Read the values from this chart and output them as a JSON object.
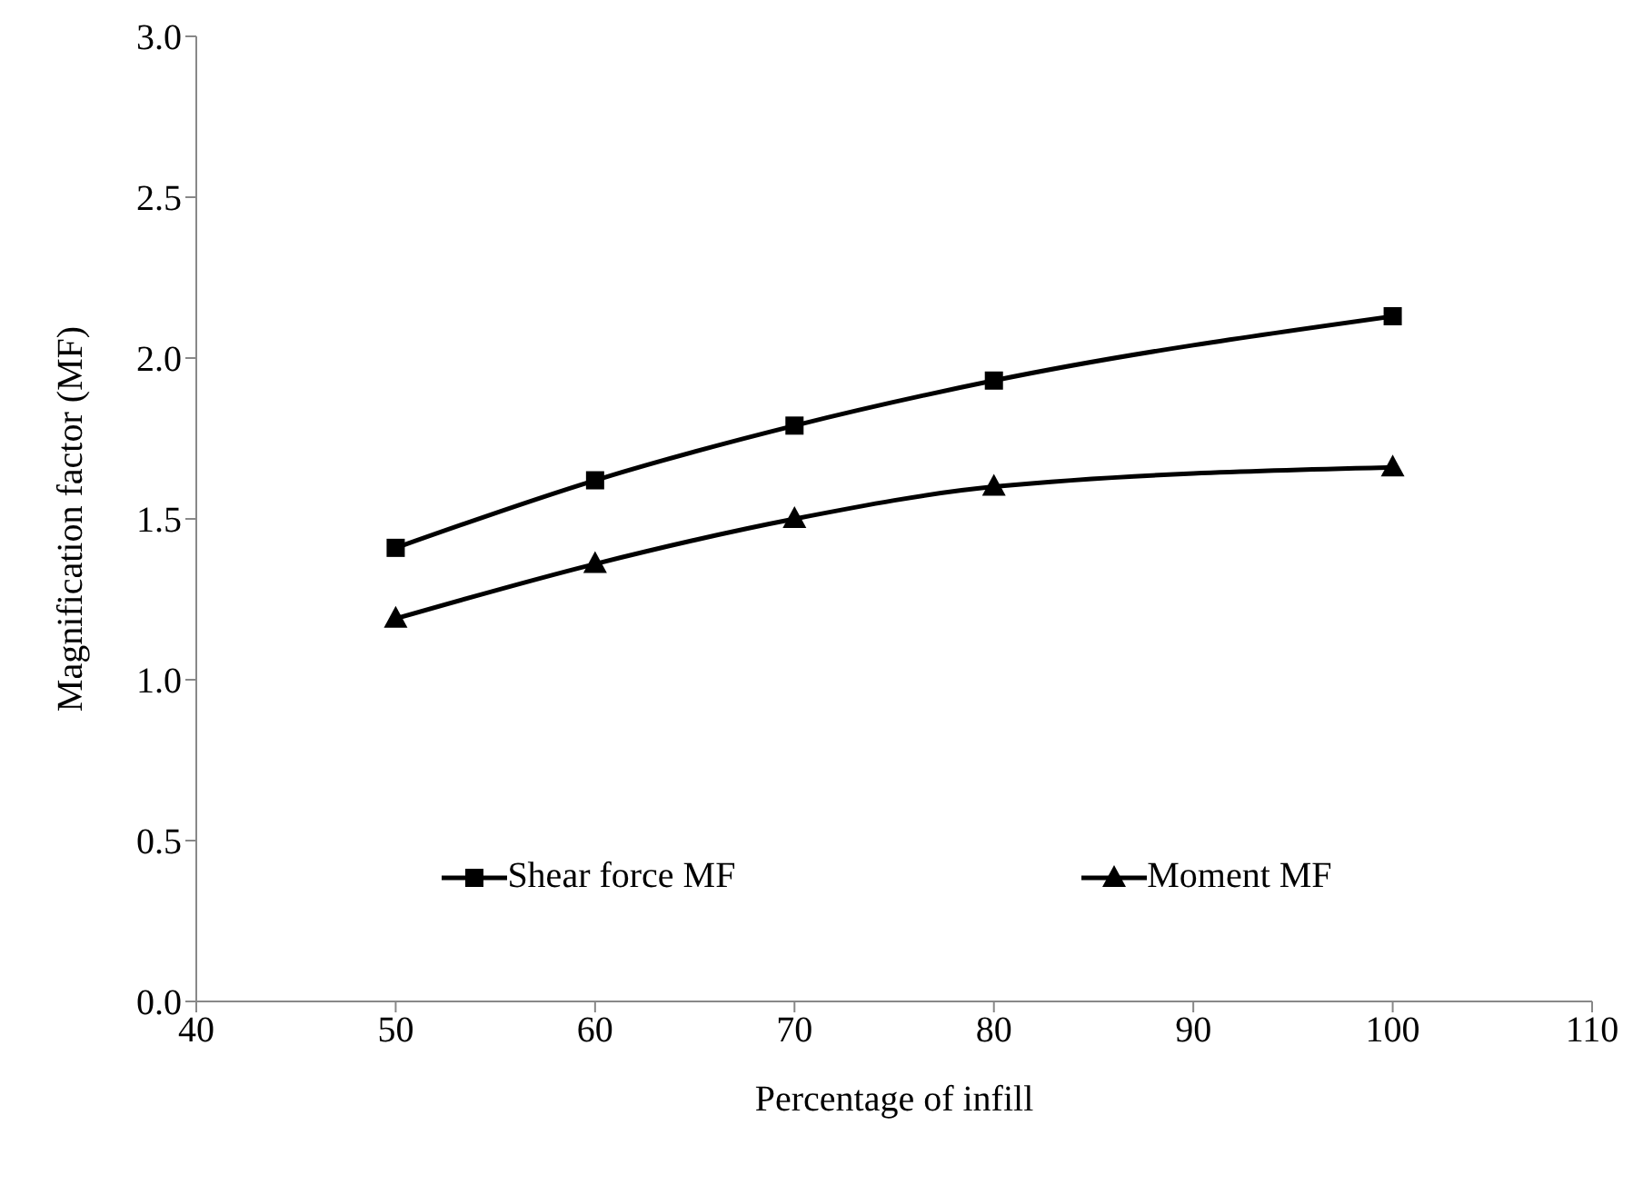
{
  "chart_data": {
    "type": "line",
    "xlabel": "Percentage of infill",
    "ylabel": "Magnification factor (MF)",
    "x": [
      50,
      60,
      70,
      80,
      100
    ],
    "series": [
      {
        "name": "Shear force MF",
        "color": "#000000",
        "marker": "square",
        "values": [
          1.41,
          1.62,
          1.79,
          1.93,
          2.13
        ]
      },
      {
        "name": "Moment MF",
        "color": "#000000",
        "marker": "triangle",
        "values": [
          1.19,
          1.36,
          1.5,
          1.6,
          1.66
        ]
      }
    ],
    "xlim": [
      40,
      110
    ],
    "xticks": [
      40,
      50,
      60,
      70,
      80,
      90,
      100,
      110
    ],
    "ylim": [
      0,
      3
    ],
    "yticks": [
      {
        "value": 0,
        "label": "0.0"
      },
      {
        "value": 0.5,
        "label": "0.5"
      },
      {
        "value": 1,
        "label": "1.0"
      },
      {
        "value": 1.5,
        "label": "1.5"
      },
      {
        "value": 2,
        "label": "2.0"
      },
      {
        "value": 2.5,
        "label": "2.5"
      },
      {
        "value": 3,
        "label": "3.0"
      }
    ],
    "grid": false,
    "legend": "bottom",
    "line_style": "solid"
  }
}
